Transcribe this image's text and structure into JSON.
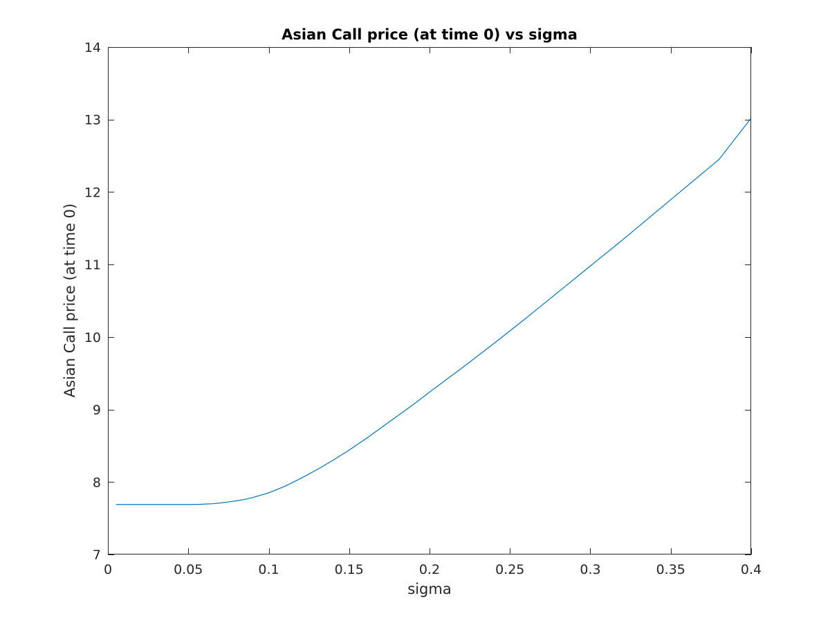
{
  "chart_data": {
    "type": "line",
    "title": "Asian Call price (at time 0) vs sigma",
    "xlabel": "sigma",
    "ylabel": "Asian Call price (at time 0)",
    "xlim": [
      0,
      0.4
    ],
    "ylim": [
      7,
      14
    ],
    "xticks": [
      0,
      0.05,
      0.1,
      0.15,
      0.2,
      0.25,
      0.3,
      0.35,
      0.4
    ],
    "xtick_labels": [
      "0",
      "0.05",
      "0.1",
      "0.15",
      "0.2",
      "0.25",
      "0.3",
      "0.35",
      "0.4"
    ],
    "yticks": [
      7,
      8,
      9,
      10,
      11,
      12,
      13,
      14
    ],
    "ytick_labels": [
      "7",
      "8",
      "9",
      "10",
      "11",
      "12",
      "13",
      "14"
    ],
    "grid": false,
    "box": true,
    "series": [
      {
        "color": "#0072BD",
        "x": [
          0.005,
          0.02,
          0.04,
          0.055,
          0.06,
          0.065,
          0.07,
          0.075,
          0.08,
          0.085,
          0.09,
          0.1,
          0.11,
          0.12,
          0.13,
          0.14,
          0.15,
          0.16,
          0.17,
          0.18,
          0.19,
          0.2,
          0.22,
          0.24,
          0.26,
          0.28,
          0.3,
          0.32,
          0.34,
          0.36,
          0.38,
          0.4
        ],
        "y": [
          7.69,
          7.69,
          7.69,
          7.69,
          7.695,
          7.7,
          7.71,
          7.725,
          7.74,
          7.76,
          7.785,
          7.85,
          7.94,
          8.05,
          8.17,
          8.3,
          8.44,
          8.59,
          8.75,
          8.91,
          9.07,
          9.24,
          9.57,
          9.91,
          10.26,
          10.62,
          10.98,
          11.34,
          11.71,
          12.08,
          12.45,
          13.02
        ]
      }
    ]
  }
}
